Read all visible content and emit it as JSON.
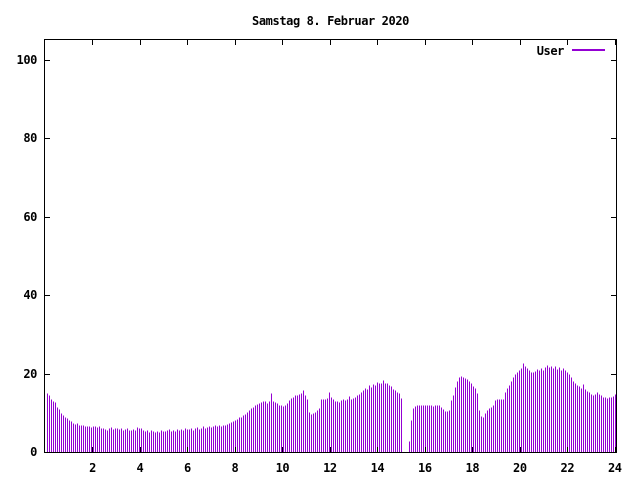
{
  "title": "Samstag 8. Februar 2020",
  "legend": {
    "label": "User"
  },
  "chart_data": {
    "type": "bar",
    "style": "impulses",
    "title": "Samstag 8. Februar 2020",
    "xlabel": "",
    "ylabel": "",
    "series_color": "#9400d3",
    "x_unit": "hour-of-day",
    "x_start_hours": 0.0833333,
    "x_step_hours": 0.0833333,
    "xlim": [
      0,
      24.05
    ],
    "ylim": [
      0,
      105
    ],
    "xticks": [
      2,
      4,
      6,
      8,
      10,
      12,
      14,
      16,
      18,
      20,
      22,
      24
    ],
    "yticks": [
      0,
      20,
      40,
      60,
      80,
      100
    ],
    "legend_position": "top-right",
    "series": [
      {
        "name": "User",
        "values": [
          15.0,
          14.6,
          13.4,
          12.9,
          12.8,
          11.5,
          10.9,
          10.0,
          9.4,
          9.0,
          8.6,
          8.2,
          7.8,
          7.5,
          7.2,
          7.3,
          7.0,
          6.8,
          6.9,
          6.6,
          6.5,
          6.7,
          6.4,
          6.5,
          6.5,
          6.3,
          6.6,
          6.2,
          6.0,
          5.8,
          5.7,
          6.0,
          6.3,
          5.9,
          6.2,
          6.0,
          5.8,
          6.0,
          5.6,
          5.9,
          6.2,
          5.7,
          5.5,
          5.8,
          5.6,
          6.0,
          6.3,
          6.2,
          6.1,
          5.7,
          5.3,
          5.6,
          5.2,
          5.5,
          5.3,
          5.1,
          5.4,
          5.2,
          5.6,
          5.4,
          5.3,
          5.6,
          5.9,
          5.4,
          5.7,
          5.3,
          5.8,
          5.5,
          5.9,
          5.6,
          6.0,
          5.8,
          5.9,
          6.2,
          5.7,
          6.0,
          6.4,
          5.9,
          6.2,
          6.5,
          6.1,
          6.4,
          6.6,
          6.3,
          6.5,
          6.8,
          6.6,
          6.9,
          6.7,
          7.0,
          6.8,
          7.2,
          7.4,
          7.6,
          7.9,
          8.2,
          8.5,
          8.8,
          9.0,
          9.4,
          9.8,
          10.3,
          10.8,
          11.2,
          11.5,
          11.9,
          12.2,
          12.6,
          12.8,
          13.1,
          12.9,
          12.6,
          13.0,
          15.0,
          13.1,
          12.8,
          12.4,
          12.1,
          11.9,
          11.6,
          12.1,
          12.6,
          13.3,
          13.8,
          14.1,
          14.4,
          14.6,
          14.8,
          15.0,
          15.8,
          14.6,
          13.5,
          10.2,
          9.6,
          9.9,
          10.3,
          10.7,
          11.3,
          11.9,
          13.4,
          13.6,
          13.5,
          13.8,
          15.4,
          14.0,
          13.4,
          12.9,
          13.1,
          12.8,
          13.3,
          13.4,
          13.2,
          13.6,
          14.3,
          13.5,
          13.8,
          14.1,
          14.4,
          14.7,
          15.3,
          15.9,
          16.4,
          16.1,
          17.1,
          16.5,
          17.4,
          17.0,
          17.8,
          17.5,
          17.7,
          18.4,
          17.7,
          17.5,
          17.1,
          16.7,
          16.1,
          15.7,
          15.3,
          15.0,
          13.7,
          0,
          0,
          0,
          2.9,
          8.2,
          11.2,
          11.6,
          11.9,
          12.1,
          12.0,
          12.1,
          11.9,
          12.0,
          11.9,
          12.1,
          11.8,
          12.0,
          11.9,
          12.1,
          11.4,
          10.9,
          10.4,
          10.5,
          10.8,
          13.3,
          14.6,
          16.5,
          18.0,
          19.0,
          19.3,
          19.1,
          18.9,
          18.6,
          18.0,
          17.5,
          16.9,
          16.2,
          15.1,
          10.8,
          9.2,
          9.0,
          10.0,
          10.6,
          11.1,
          11.5,
          12.0,
          13.2,
          13.4,
          13.4,
          13.6,
          13.5,
          14.5,
          15.4,
          16.2,
          17.0,
          18.0,
          19.0,
          19.8,
          20.3,
          20.9,
          21.5,
          22.8,
          21.8,
          21.3,
          20.9,
          20.5,
          20.3,
          20.6,
          21.2,
          20.8,
          21.3,
          20.9,
          21.6,
          22.1,
          21.7,
          22.0,
          21.3,
          21.8,
          21.2,
          21.6,
          21.0,
          21.3,
          20.8,
          20.5,
          19.8,
          19.0,
          18.2,
          17.6,
          17.2,
          16.8,
          16.4,
          17.3,
          16.1,
          15.6,
          15.3,
          14.9,
          14.4,
          14.9,
          15.3,
          14.8,
          14.5,
          14.1,
          13.9,
          13.7,
          13.9,
          14.0,
          14.2,
          14.8
        ]
      }
    ]
  }
}
